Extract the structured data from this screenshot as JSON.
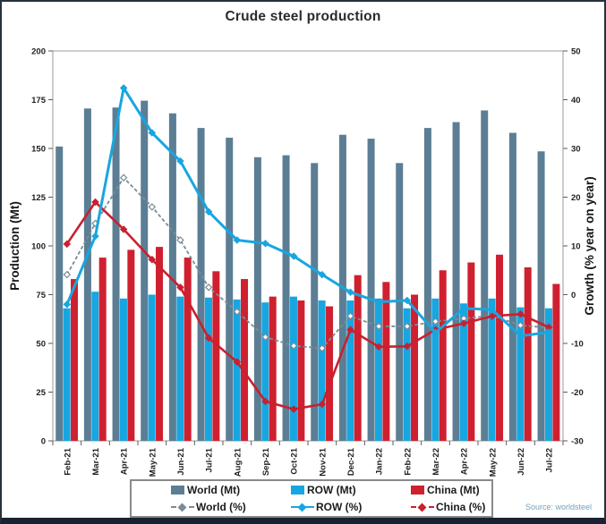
{
  "title": "Crude steel production",
  "source": "Source: worldsteel",
  "chart_data": {
    "type": "bar",
    "subtype": "combo-bar-line-dual-axis",
    "title": "Crude steel production",
    "xlabel": "",
    "left_ylabel": "Production (Mt)",
    "right_ylabel": "Growth (% year on year)",
    "left_ylim": [
      0,
      200
    ],
    "right_ylim": [
      -30,
      50
    ],
    "left_ticks": [
      0,
      25,
      50,
      75,
      100,
      125,
      150,
      175,
      200
    ],
    "right_ticks": [
      -30,
      -20,
      -10,
      0,
      10,
      20,
      30,
      40,
      50
    ],
    "grid": false,
    "legend_position": "bottom",
    "categories": [
      "Feb-21",
      "Mar-21",
      "Apr-21",
      "May-21",
      "Jun-21",
      "Jul-21",
      "Aug-21",
      "Sep-21",
      "Oct-21",
      "Nov-21",
      "Dec-21",
      "Jan-22",
      "Feb-22",
      "Mar-22",
      "Apr-22",
      "May-22",
      "Jun-22",
      "Jul-22"
    ],
    "series": [
      {
        "id": "world-mt",
        "name": "World (Mt)",
        "type": "bar",
        "axis": "left",
        "color": "#5b7e94",
        "values": [
          151.0,
          170.5,
          171.0,
          174.5,
          168.0,
          160.5,
          155.5,
          145.5,
          146.5,
          142.5,
          157.0,
          155.0,
          142.5,
          160.5,
          163.5,
          169.5,
          158.0,
          148.5
        ]
      },
      {
        "id": "row-mt",
        "name": "ROW (Mt)",
        "type": "bar",
        "axis": "left",
        "color": "#18a6e0",
        "values": [
          68.0,
          76.5,
          73.0,
          75.0,
          74.0,
          73.5,
          72.5,
          71.0,
          74.0,
          72.0,
          72.0,
          73.0,
          68.0,
          73.0,
          70.5,
          73.0,
          68.5,
          68.0
        ]
      },
      {
        "id": "china-mt",
        "name": "China (Mt)",
        "type": "bar",
        "axis": "left",
        "color": "#cf2030",
        "values": [
          83.0,
          94.0,
          98.0,
          99.5,
          94.0,
          87.0,
          83.0,
          74.0,
          72.0,
          69.0,
          85.0,
          81.5,
          75.0,
          87.5,
          91.5,
          95.5,
          89.0,
          80.5
        ]
      },
      {
        "id": "world-pct",
        "name": "World (%)",
        "type": "line",
        "axis": "right",
        "color": "#7b8c98",
        "dash": "4 2.5",
        "width": 1.8,
        "marker": "open",
        "z": 1,
        "values": [
          4.1,
          14.6,
          24.0,
          18.0,
          11.2,
          1.5,
          -3.5,
          -8.7,
          -10.5,
          -11.0,
          -4.4,
          -6.5,
          -6.5,
          -5.5,
          -4.9,
          -4.3,
          -6.3,
          -6.8
        ]
      },
      {
        "id": "row-pct",
        "name": "ROW (%)",
        "type": "line",
        "axis": "right",
        "color": "#18a6e0",
        "dash": "",
        "width": 3,
        "marker": "filled",
        "z": 3,
        "values": [
          -2.0,
          12.0,
          42.4,
          33.2,
          27.4,
          17.0,
          11.2,
          10.5,
          7.9,
          4.1,
          0.5,
          -1.5,
          -1.2,
          -7.8,
          -2.8,
          -3.1,
          -8.5,
          -7.7
        ]
      },
      {
        "id": "china-pct",
        "name": "China (%)",
        "type": "line",
        "axis": "right",
        "color": "#c9202e",
        "dash": "",
        "width": 2.6,
        "marker": "filled",
        "z": 2,
        "values": [
          10.4,
          19.0,
          13.4,
          7.2,
          1.5,
          -8.9,
          -13.8,
          -21.9,
          -23.5,
          -22.5,
          -7.2,
          -10.7,
          -10.6,
          -7.2,
          -5.9,
          -4.4,
          -4.0,
          -6.7
        ]
      }
    ]
  }
}
